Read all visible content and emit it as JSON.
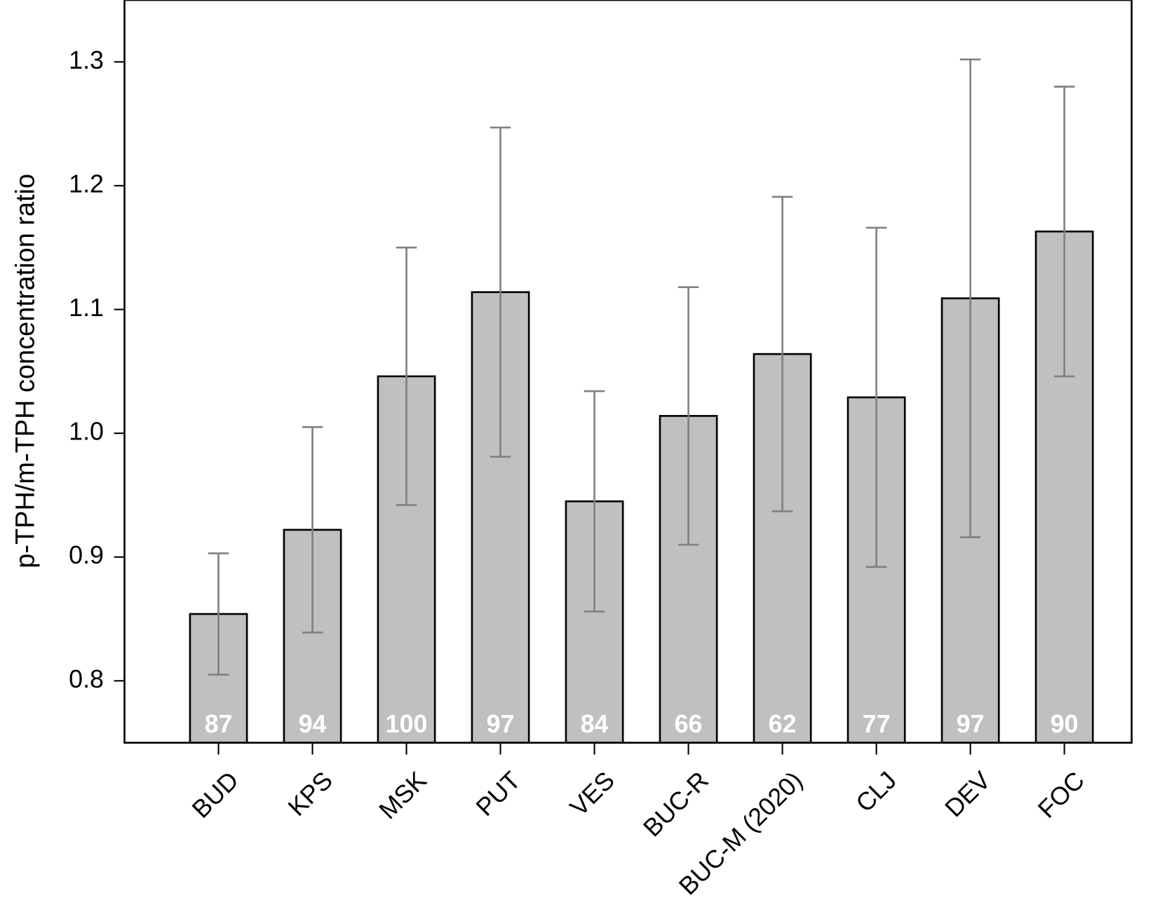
{
  "chart_data": {
    "type": "bar",
    "y_label": "p-TPH/m-TPH concentration ratio",
    "categories": [
      "BUD",
      "KPS",
      "MSK",
      "PUT",
      "VES",
      "BUC-R",
      "BUC-M (2020)",
      "CLJ",
      "DEV",
      "FOC"
    ],
    "values": [
      0.854,
      0.922,
      1.046,
      1.114,
      0.945,
      1.014,
      1.064,
      1.029,
      1.109,
      1.163
    ],
    "errors": [
      0.049,
      0.083,
      0.104,
      0.133,
      0.089,
      0.104,
      0.127,
      0.137,
      0.193,
      0.117
    ],
    "bar_labels": [
      87,
      94,
      100,
      97,
      84,
      66,
      62,
      77,
      97,
      90
    ],
    "color": "#c0c0c0",
    "error_color": "#808080",
    "ylim": [
      0.75,
      1.35
    ],
    "yticks": [
      0.8,
      0.9,
      {
        "value": 1.0,
        "label": "1.0"
      },
      1.1,
      1.2,
      1.3
    ],
    "grid": false
  }
}
